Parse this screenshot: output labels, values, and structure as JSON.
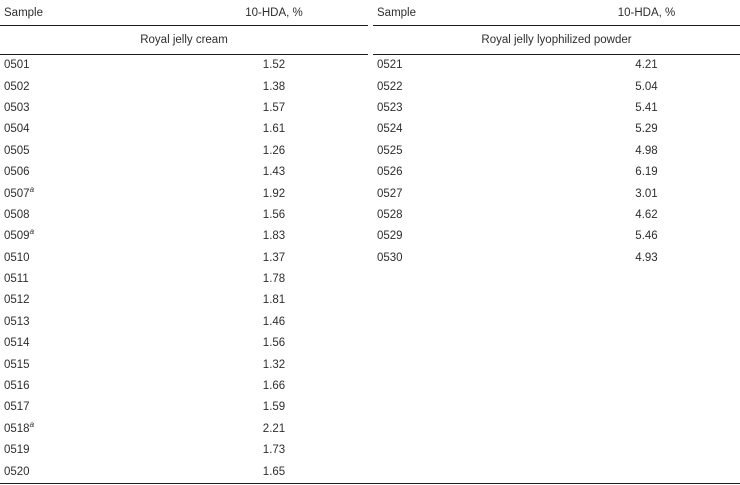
{
  "colors": {
    "text": "#2e2e2e",
    "rule": "#1c1c1c",
    "background": "#ffffff"
  },
  "table": {
    "left": {
      "col_sample": "Sample",
      "col_value": "10-HDA, %",
      "group": "Royal jelly cream",
      "rows": [
        {
          "sample": "0501",
          "sup": "",
          "value": "1.52"
        },
        {
          "sample": "0502",
          "sup": "",
          "value": "1.38"
        },
        {
          "sample": "0503",
          "sup": "",
          "value": "1.57"
        },
        {
          "sample": "0504",
          "sup": "",
          "value": "1.61"
        },
        {
          "sample": "0505",
          "sup": "",
          "value": "1.26"
        },
        {
          "sample": "0506",
          "sup": "",
          "value": "1.43"
        },
        {
          "sample": "0507",
          "sup": "a",
          "value": "1.92"
        },
        {
          "sample": "0508",
          "sup": "",
          "value": "1.56"
        },
        {
          "sample": "0509",
          "sup": "a",
          "value": "1.83"
        },
        {
          "sample": "0510",
          "sup": "",
          "value": "1.37"
        },
        {
          "sample": "0511",
          "sup": "",
          "value": "1.78"
        },
        {
          "sample": "0512",
          "sup": "",
          "value": "1.81"
        },
        {
          "sample": "0513",
          "sup": "",
          "value": "1.46"
        },
        {
          "sample": "0514",
          "sup": "",
          "value": "1.56"
        },
        {
          "sample": "0515",
          "sup": "",
          "value": "1.32"
        },
        {
          "sample": "0516",
          "sup": "",
          "value": "1.66"
        },
        {
          "sample": "0517",
          "sup": "",
          "value": "1.59"
        },
        {
          "sample": "0518",
          "sup": "a",
          "value": "2.21"
        },
        {
          "sample": "0519",
          "sup": "",
          "value": "1.73"
        },
        {
          "sample": "0520",
          "sup": "",
          "value": "1.65"
        }
      ]
    },
    "right": {
      "col_sample": "Sample",
      "col_value": "10-HDA, %",
      "group": "Royal jelly lyophilized powder",
      "rows": [
        {
          "sample": "0521",
          "sup": "",
          "value": "4.21"
        },
        {
          "sample": "0522",
          "sup": "",
          "value": "5.04"
        },
        {
          "sample": "0523",
          "sup": "",
          "value": "5.41"
        },
        {
          "sample": "0524",
          "sup": "",
          "value": "5.29"
        },
        {
          "sample": "0525",
          "sup": "",
          "value": "4.98"
        },
        {
          "sample": "0526",
          "sup": "",
          "value": "6.19"
        },
        {
          "sample": "0527",
          "sup": "",
          "value": "3.01"
        },
        {
          "sample": "0528",
          "sup": "",
          "value": "4.62"
        },
        {
          "sample": "0529",
          "sup": "",
          "value": "5.46"
        },
        {
          "sample": "0530",
          "sup": "",
          "value": "4.93"
        }
      ]
    }
  }
}
